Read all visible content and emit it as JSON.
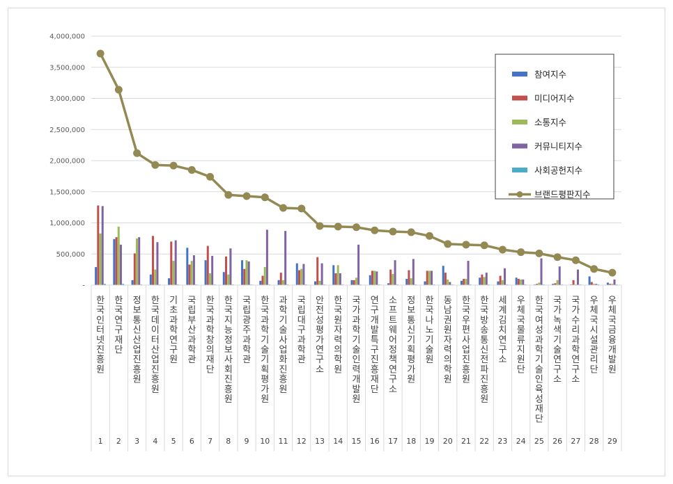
{
  "chart_data": {
    "type": "bar",
    "title": "",
    "xlabel": "",
    "ylabel": "",
    "ylim": [
      0,
      4000000
    ],
    "yticks": [
      "-",
      "500,000",
      "1,000,000",
      "1,500,000",
      "2,000,000",
      "2,500,000",
      "3,000,000",
      "3,500,000",
      "4,000,000"
    ],
    "ytick_values": [
      0,
      500000,
      1000000,
      1500000,
      2000000,
      2500000,
      3000000,
      3500000,
      4000000
    ],
    "grid": true,
    "legend_position": "top-right",
    "index_labels": [
      "1",
      "2",
      "3",
      "4",
      "5",
      "6",
      "7",
      "8",
      "9",
      "10",
      "11",
      "12",
      "13",
      "14",
      "15",
      "16",
      "17",
      "18",
      "19",
      "20",
      "21",
      "22",
      "23",
      "24",
      "25",
      "26",
      "27",
      "28",
      "29"
    ],
    "categories": [
      "한국인터넷진흥원",
      "한국연구재단",
      "정보통신산업진흥원",
      "한국데이터산업진흥원",
      "기초과학연구원",
      "국립부산과학관",
      "한국과학창의재단",
      "한국지능정보사회진흥원",
      "국립광주과학관",
      "한국과학기술기획평가원",
      "과학기술사업화진흥원",
      "국립대구과학관",
      "안전성평가연구소",
      "한국원자력의학원",
      "국가과학기술인력개발원",
      "연구개발특구진흥재단",
      "소프트웨어정책연구소",
      "정보통신기획평가원",
      "한국나노기술원",
      "동남권원자력의학원",
      "한국우편사업진흥원",
      "한국방송통신전파진흥원",
      "세계김치연구소",
      "우체국물류지원단",
      "한국여성과학기술인육성재단",
      "국가녹색기술연구소",
      "국가수리과학연구소",
      "우체국시설관리단",
      "우체국금융개발원"
    ],
    "series": [
      {
        "name": "참여지수",
        "color": "#4472c4",
        "kind": "bar",
        "values": [
          290000,
          740000,
          80000,
          170000,
          110000,
          600000,
          400000,
          210000,
          400000,
          70000,
          80000,
          350000,
          60000,
          320000,
          80000,
          160000,
          30000,
          100000,
          60000,
          310000,
          70000,
          120000,
          60000,
          120000,
          10000,
          20000,
          10000,
          140000,
          40000
        ]
      },
      {
        "name": "미디어지수",
        "color": "#c0504d",
        "kind": "bar",
        "values": [
          1280000,
          770000,
          510000,
          790000,
          700000,
          330000,
          630000,
          460000,
          260000,
          150000,
          200000,
          240000,
          450000,
          190000,
          80000,
          230000,
          250000,
          240000,
          230000,
          200000,
          100000,
          170000,
          150000,
          100000,
          20000,
          30000,
          80000,
          50000,
          20000
        ]
      },
      {
        "name": "소통지수",
        "color": "#9bbb59",
        "kind": "bar",
        "values": [
          830000,
          940000,
          750000,
          250000,
          390000,
          390000,
          190000,
          170000,
          400000,
          290000,
          80000,
          260000,
          70000,
          320000,
          120000,
          230000,
          180000,
          110000,
          230000,
          90000,
          100000,
          130000,
          80000,
          90000,
          40000,
          80000,
          10000,
          20000,
          20000
        ]
      },
      {
        "name": "커뮤니티지수",
        "color": "#8064a2",
        "kind": "bar",
        "values": [
          1270000,
          650000,
          770000,
          690000,
          720000,
          480000,
          470000,
          590000,
          380000,
          890000,
          870000,
          340000,
          350000,
          190000,
          650000,
          220000,
          400000,
          420000,
          230000,
          50000,
          390000,
          200000,
          270000,
          90000,
          430000,
          300000,
          250000,
          20000,
          90000
        ]
      },
      {
        "name": "사회공헌지수",
        "color": "#4bacc6",
        "kind": "bar",
        "values": [
          20000,
          20000,
          10000,
          10000,
          10000,
          10000,
          10000,
          10000,
          10000,
          10000,
          10000,
          10000,
          10000,
          10000,
          10000,
          10000,
          10000,
          10000,
          10000,
          10000,
          10000,
          10000,
          10000,
          10000,
          10000,
          10000,
          10000,
          10000,
          10000
        ]
      },
      {
        "name": "브랜드평판지수",
        "color": "#938953",
        "kind": "line",
        "values": [
          3720000,
          3140000,
          2120000,
          1930000,
          1920000,
          1850000,
          1740000,
          1450000,
          1430000,
          1410000,
          1240000,
          1230000,
          950000,
          940000,
          930000,
          880000,
          860000,
          850000,
          790000,
          660000,
          650000,
          640000,
          570000,
          530000,
          510000,
          450000,
          400000,
          260000,
          200000
        ]
      }
    ]
  }
}
